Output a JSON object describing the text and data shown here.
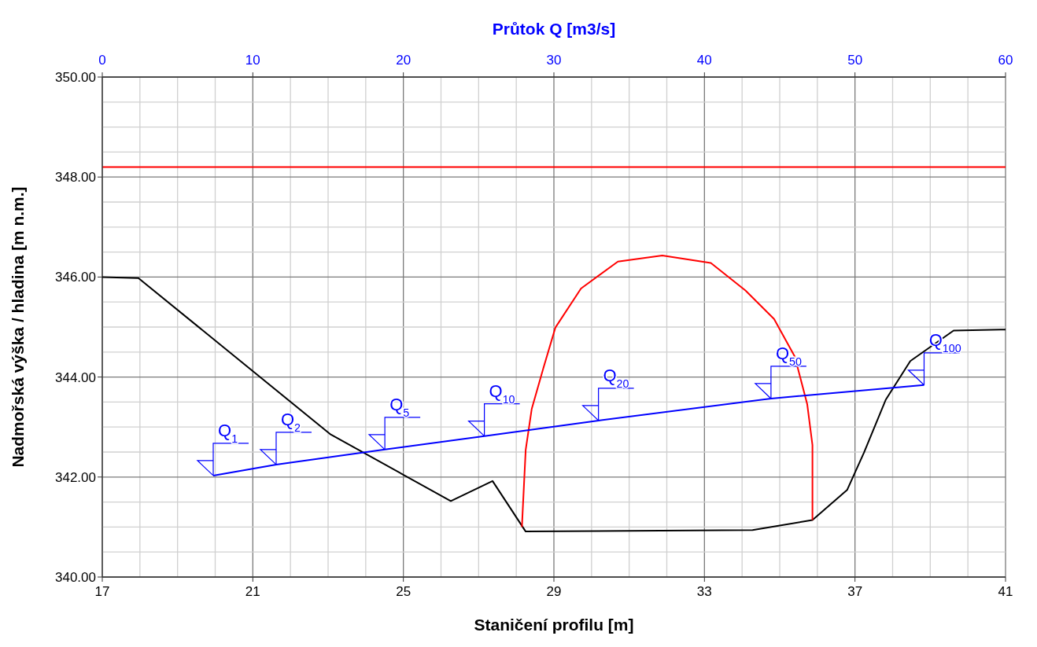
{
  "chart_data": {
    "type": "line",
    "xlabel": "Staničení profilu [m]",
    "ylabel": "Nadmořská výška / hladina [m n.m.]",
    "x2label": "Průtok Q [m3/s]",
    "xlim": [
      17,
      41
    ],
    "xticks": [
      17,
      {
        "value": 18,
        "label": null
      },
      {
        "value": 19,
        "label": null
      },
      {
        "value": 20,
        "label": null
      },
      21,
      {
        "value": 22,
        "label": null
      },
      {
        "value": 23,
        "label": null
      },
      {
        "value": 24,
        "label": null
      },
      25,
      {
        "value": 26,
        "label": null
      },
      {
        "value": 27,
        "label": null
      },
      {
        "value": 28,
        "label": null
      },
      29,
      {
        "value": 30,
        "label": null
      },
      {
        "value": 31,
        "label": null
      },
      {
        "value": 32,
        "label": null
      },
      33,
      {
        "value": 34,
        "label": null
      },
      {
        "value": 35,
        "label": null
      },
      {
        "value": 36,
        "label": null
      },
      37,
      {
        "value": 38,
        "label": null
      },
      {
        "value": 39,
        "label": null
      },
      {
        "value": 40,
        "label": null
      },
      41
    ],
    "x2lim": [
      0,
      60
    ],
    "x2ticks": [
      0,
      10,
      20,
      30,
      40,
      50,
      60
    ],
    "ylim": [
      340,
      350
    ],
    "yticks": [
      {
        "value": 340,
        "label": "340.00"
      },
      {
        "value": 340.5,
        "label": null
      },
      {
        "value": 341,
        "label": null
      },
      {
        "value": 341.5,
        "label": null
      },
      {
        "value": 342,
        "label": "342.00"
      },
      {
        "value": 342.5,
        "label": null
      },
      {
        "value": 343,
        "label": null
      },
      {
        "value": 343.5,
        "label": null
      },
      {
        "value": 344,
        "label": "344.00"
      },
      {
        "value": 344.5,
        "label": null
      },
      {
        "value": 345,
        "label": null
      },
      {
        "value": 345.5,
        "label": null
      },
      {
        "value": 346,
        "label": "346.00"
      },
      {
        "value": 346.5,
        "label": null
      },
      {
        "value": 347,
        "label": null
      },
      {
        "value": 347.5,
        "label": null
      },
      {
        "value": 348,
        "label": "348.00"
      },
      {
        "value": 348.5,
        "label": null
      },
      {
        "value": 349,
        "label": null
      },
      {
        "value": 349.5,
        "label": null
      },
      {
        "value": 350,
        "label": "350.00"
      }
    ],
    "grid": true,
    "annotations": [
      {
        "text": "Q$_{1}$",
        "x": 19.95,
        "y": 342.03
      },
      {
        "text": "Q$_{2}$",
        "x": 21.62,
        "y": 342.25
      },
      {
        "text": "Q$_{5}$",
        "x": 24.51,
        "y": 342.55
      },
      {
        "text": "Q$_{10}$",
        "x": 27.15,
        "y": 342.82
      },
      {
        "text": "Q$_{20}$",
        "x": 30.18,
        "y": 343.13
      },
      {
        "text": "Q$_{50}$",
        "x": 34.77,
        "y": 343.57
      },
      {
        "text": "Q$_{100}$",
        "x": 38.84,
        "y": 343.84
      }
    ],
    "ref_lines": [
      {
        "axis": "y",
        "value": 348.2,
        "color": "#ff0000"
      }
    ],
    "series": [
      {
        "color": "#000000",
        "x": [
          17,
          17.96,
          23.07,
          26.26,
          27.37,
          28.25,
          34.28,
          35.87,
          36.79,
          37.24,
          37.82,
          38.47,
          39.62,
          41
        ],
        "values": [
          346.0,
          345.98,
          342.85,
          341.52,
          341.92,
          340.91,
          340.94,
          341.14,
          341.74,
          342.49,
          343.55,
          344.32,
          344.93,
          344.95
        ]
      },
      {
        "color": "#ff0000",
        "x": [
          28.15,
          28.25,
          28.41,
          28.72,
          29.04,
          29.72,
          30.7,
          31.88,
          33.17,
          34.09,
          34.85,
          35.4,
          35.73,
          35.87,
          35.87
        ],
        "values": [
          341.0,
          342.54,
          343.36,
          344.18,
          344.99,
          345.77,
          346.31,
          346.43,
          346.28,
          345.73,
          345.16,
          344.41,
          343.46,
          342.64,
          341.14
        ]
      },
      {
        "color": "#0000ff",
        "axis": "x2",
        "x": [
          7.37,
          11.55,
          18.77,
          25.38,
          32.96,
          44.42,
          54.59
        ],
        "values": [
          342.03,
          342.25,
          342.55,
          342.82,
          343.13,
          343.57,
          343.84
        ]
      }
    ]
  }
}
